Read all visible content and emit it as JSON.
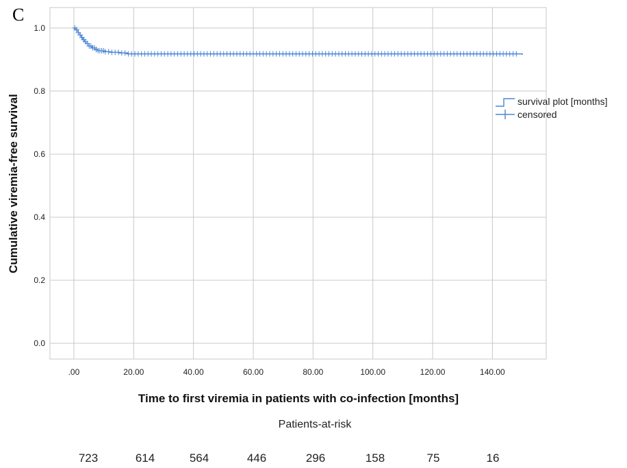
{
  "panel_label": "C",
  "chart_data": {
    "type": "line",
    "subtype": "kaplan-meier",
    "xlabel": "Time to first viremia in patients with co-infection [months]",
    "ylabel": "Cumulative viremia-free survival",
    "xlim": [
      -8,
      158
    ],
    "ylim": [
      -0.05,
      1.065
    ],
    "grid": true,
    "x_ticks": [
      0,
      20,
      40,
      60,
      80,
      100,
      120,
      140
    ],
    "x_tick_labels": [
      ".00",
      "20.00",
      "40.00",
      "60.00",
      "80.00",
      "100.00",
      "120.00",
      "140.00"
    ],
    "y_ticks": [
      0.0,
      0.2,
      0.4,
      0.6,
      0.8,
      1.0
    ],
    "y_tick_labels": [
      "0.0",
      "0.2",
      "0.4",
      "0.6",
      "0.8",
      "1.0"
    ],
    "legend_position": "right",
    "legend": [
      {
        "label": "survival plot [months]",
        "symbol": "step-line"
      },
      {
        "label": "censored",
        "symbol": "plus"
      }
    ],
    "series": [
      {
        "name": "survival plot [months]",
        "color": "#4a86d4",
        "x": [
          0,
          0.5,
          1,
          1.5,
          2,
          2.5,
          3,
          3.5,
          4,
          5,
          6,
          7,
          8,
          10,
          12,
          15,
          18,
          150
        ],
        "y": [
          1.0,
          0.995,
          0.99,
          0.985,
          0.978,
          0.97,
          0.963,
          0.957,
          0.951,
          0.943,
          0.937,
          0.932,
          0.928,
          0.925,
          0.923,
          0.921,
          0.918,
          0.915
        ]
      }
    ],
    "censored_marks": {
      "name": "censored",
      "color": "#4a86d4"
    }
  },
  "risk_table": {
    "title": "Patients-at-risk",
    "counts": [
      "723",
      "614",
      "564",
      "446",
      "296",
      "158",
      "75",
      "16"
    ]
  }
}
